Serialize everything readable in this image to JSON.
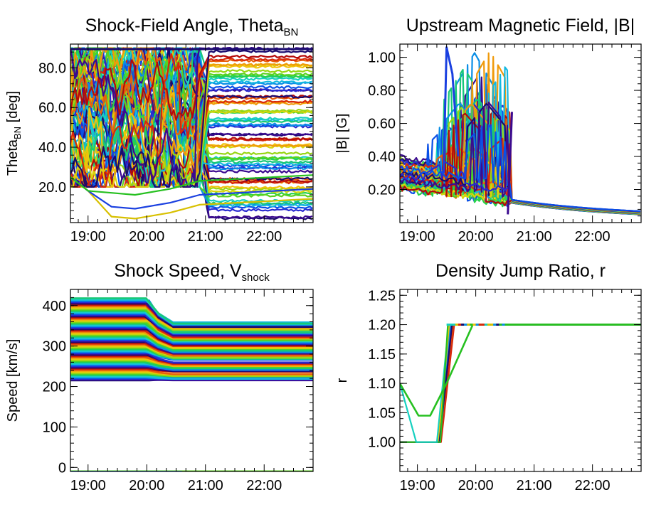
{
  "figure": {
    "x_tick_labels": [
      "19:00",
      "20:00",
      "21:00",
      "22:00"
    ]
  },
  "chart_data": [
    {
      "type": "line",
      "title": "Shock-Field Angle, Theta",
      "title_subscript": "BN",
      "ylabel": "Theta",
      "ylabel_subscript": "BN",
      "ylabel_unit": " [deg]",
      "xlim": [
        "18:42",
        "22:50"
      ],
      "ylim": [
        2,
        92
      ],
      "y_ticks": [
        20,
        40,
        60,
        80
      ],
      "y_tick_labels": [
        "20.0",
        "40.0",
        "60.0",
        "80.0"
      ],
      "x_tick_labels": [
        "19:00",
        "20:00",
        "21:00",
        "22:00"
      ],
      "grid": false,
      "description_of_series": "many field lines, rainbow colored"
    },
    {
      "type": "line",
      "title": "Upstream Magnetic Field, |B|",
      "ylabel": "|B| [G]",
      "xlim": [
        "18:42",
        "22:50"
      ],
      "ylim": [
        0.0,
        1.08
      ],
      "y_ticks": [
        0.2,
        0.4,
        0.6,
        0.8,
        1.0
      ],
      "y_tick_labels": [
        "0.20",
        "0.40",
        "0.60",
        "0.80",
        "1.00"
      ],
      "x_tick_labels": [
        "19:00",
        "20:00",
        "21:00",
        "22:00"
      ],
      "grid": false
    },
    {
      "type": "line",
      "title": "Shock Speed, V",
      "title_subscript": "shock",
      "ylabel": "Speed [km/s]",
      "xlim": [
        "18:42",
        "22:50"
      ],
      "ylim": [
        -10,
        440
      ],
      "y_ticks": [
        0,
        100,
        200,
        300,
        400
      ],
      "y_tick_labels": [
        "0",
        "100",
        "200",
        "300",
        "400"
      ],
      "x_tick_labels": [
        "19:00",
        "20:00",
        "21:00",
        "22:00"
      ],
      "grid": false
    },
    {
      "type": "line",
      "title": "Density Jump Ratio, r",
      "ylabel": "r",
      "xlim": [
        "18:42",
        "22:50"
      ],
      "ylim": [
        0.95,
        1.26
      ],
      "y_ticks": [
        1.0,
        1.05,
        1.1,
        1.15,
        1.2,
        1.25
      ],
      "y_tick_labels": [
        "1.00",
        "1.05",
        "1.10",
        "1.15",
        "1.20",
        "1.25"
      ],
      "x_tick_labels": [
        "19:00",
        "20:00",
        "21:00",
        "22:00"
      ],
      "grid": false
    }
  ]
}
